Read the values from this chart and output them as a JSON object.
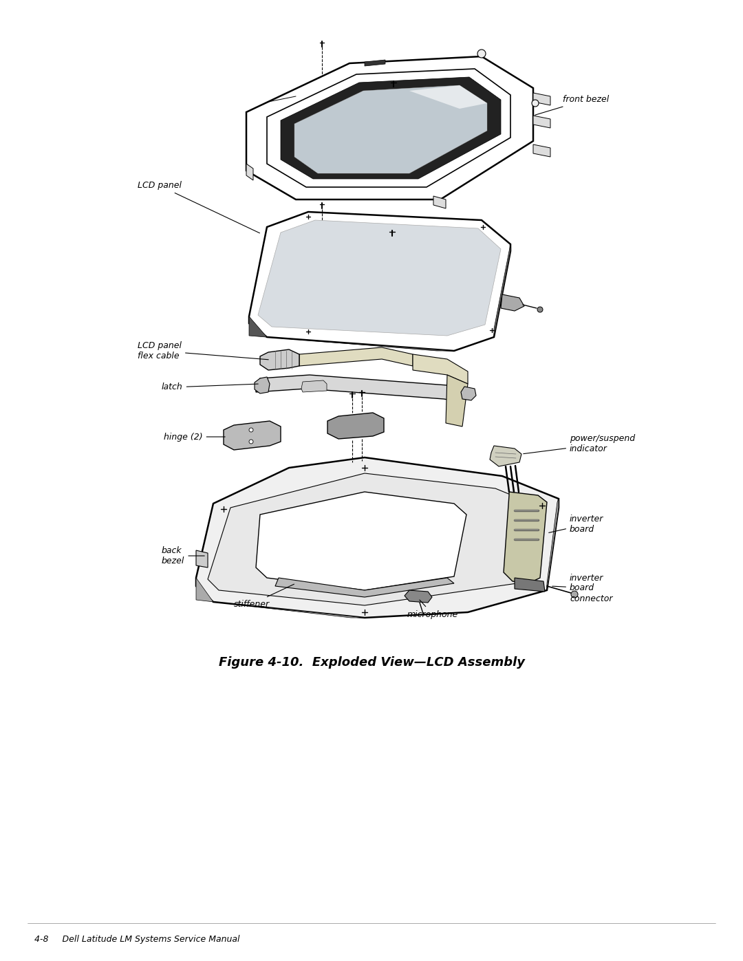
{
  "figure_title": "Figure 4-10.  Exploded View—LCD Assembly",
  "footer_text": "4-8     Dell Latitude LM Systems Service Manual",
  "bg_color": "#ffffff",
  "fig_width": 10.8,
  "fig_height": 13.97,
  "labels": {
    "front_bezel": "front bezel",
    "lcd_panel": "LCD panel",
    "lcd_panel_flex_cable": "LCD panel\nflex cable",
    "latch": "latch",
    "power_suspend": "power/suspend\nindicator",
    "hinge": "hinge (2)",
    "inverter_board": "inverter\nboard",
    "back_bezel": "back\nbezel",
    "stiffener": "stiffener",
    "microphone": "microphone",
    "inverter_board_connector": "inverter\nboard\nconnector"
  },
  "title_fontsize": 13,
  "label_fontsize": 9,
  "footer_fontsize": 9
}
